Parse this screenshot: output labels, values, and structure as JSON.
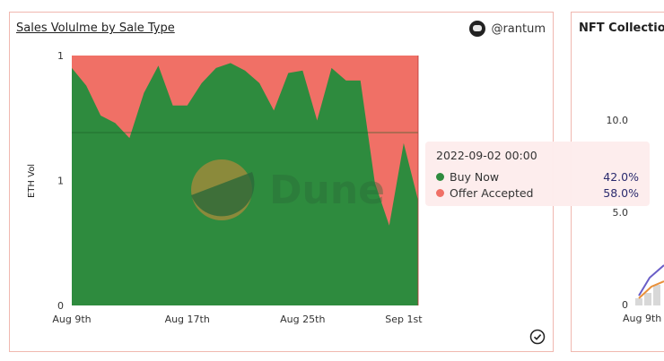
{
  "main_panel": {
    "title": "Sales Volulme by Sale Type",
    "author": "@rantum",
    "watermark": "Dune"
  },
  "side_panel": {
    "title": "NFT Collection",
    "y_ticks": [
      "10.0",
      "5.0",
      "0"
    ],
    "x_tick": "Aug 9th"
  },
  "tooltip": {
    "date": "2022-09-02 00:00",
    "items": [
      {
        "name": "Buy Now",
        "value": "42.0%",
        "color": "#2e8b3e"
      },
      {
        "name": "Offer Accepted",
        "value": "58.0%",
        "color": "#f07066"
      }
    ]
  },
  "chart_data": {
    "type": "area",
    "stacked_percent": true,
    "ylabel": "ETH Vol",
    "y_tick_labels": [
      "1",
      "1",
      "0"
    ],
    "x_tick_labels": [
      "Aug 9th",
      "Aug 17th",
      "Aug 25th",
      "Sep 1st"
    ],
    "x": [
      "2022-08-09",
      "2022-08-10",
      "2022-08-11",
      "2022-08-12",
      "2022-08-13",
      "2022-08-14",
      "2022-08-15",
      "2022-08-16",
      "2022-08-17",
      "2022-08-18",
      "2022-08-19",
      "2022-08-20",
      "2022-08-21",
      "2022-08-22",
      "2022-08-23",
      "2022-08-24",
      "2022-08-25",
      "2022-08-26",
      "2022-08-27",
      "2022-08-28",
      "2022-08-29",
      "2022-08-30",
      "2022-08-31",
      "2022-09-01",
      "2022-09-02"
    ],
    "series": [
      {
        "name": "Buy Now",
        "color": "#2e8b3e",
        "values": [
          0.95,
          0.88,
          0.76,
          0.73,
          0.67,
          0.85,
          0.96,
          0.8,
          0.8,
          0.89,
          0.95,
          0.97,
          0.94,
          0.89,
          0.78,
          0.93,
          0.94,
          0.74,
          0.95,
          0.9,
          0.9,
          0.49,
          0.32,
          0.65,
          0.42
        ]
      },
      {
        "name": "Offer Accepted",
        "color": "#f07066",
        "values": [
          0.05,
          0.12,
          0.24,
          0.27,
          0.33,
          0.15,
          0.04,
          0.2,
          0.2,
          0.11,
          0.05,
          0.03,
          0.06,
          0.11,
          0.22,
          0.07,
          0.06,
          0.26,
          0.05,
          0.1,
          0.1,
          0.51,
          0.68,
          0.35,
          0.58
        ]
      }
    ]
  }
}
